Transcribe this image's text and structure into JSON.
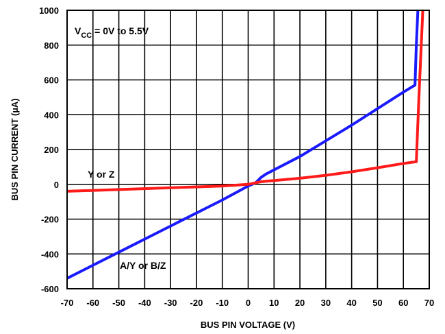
{
  "chart_data": {
    "type": "line",
    "title": "",
    "xlabel": "BUS PIN VOLTAGE (V)",
    "ylabel": "BUS PIN CURRENT (µA)",
    "xlim": [
      -70,
      70
    ],
    "ylim": [
      -600,
      1000
    ],
    "xticks": [
      "-70",
      "-60",
      "-50",
      "-40",
      "-30",
      "-20",
      "-10",
      "0",
      "10",
      "20",
      "30",
      "40",
      "50",
      "60",
      "70"
    ],
    "yticks": [
      "1000",
      "800",
      "600",
      "400",
      "200",
      "0",
      "-200",
      "-400",
      "-600"
    ],
    "xtick_values": [
      -70,
      -60,
      -50,
      -40,
      -30,
      -20,
      -10,
      0,
      10,
      20,
      30,
      40,
      50,
      60,
      70
    ],
    "ytick_values": [
      1000,
      800,
      600,
      400,
      200,
      0,
      -200,
      -400,
      -600
    ],
    "grid": true,
    "annotations": {
      "vcc_main": "V",
      "vcc_sub": "CC",
      "vcc_rest": " = 0V to 5.5V",
      "y_or_z": "Y or Z",
      "ay_or_bz": "A/Y or B/Z"
    },
    "series": [
      {
        "label_ref": "A/Y or B/Z",
        "color": "#1a1aff",
        "x": [
          -70,
          -50,
          -30,
          -10,
          0,
          3,
          5,
          7,
          20,
          40,
          60,
          64.5,
          65,
          65.6
        ],
        "y": [
          -540,
          -390,
          -240,
          -90,
          -10,
          10,
          40,
          60,
          160,
          340,
          530,
          570,
          800,
          1000
        ]
      },
      {
        "label_ref": "Y or Z",
        "color": "#ff1a1a",
        "x": [
          -70,
          -50,
          -30,
          -10,
          0,
          5,
          10,
          20,
          30,
          40,
          50,
          60,
          65,
          66,
          67.5
        ],
        "y": [
          -40,
          -30,
          -20,
          -10,
          0,
          15,
          22,
          35,
          52,
          72,
          95,
          120,
          130,
          500,
          1000
        ]
      }
    ]
  }
}
